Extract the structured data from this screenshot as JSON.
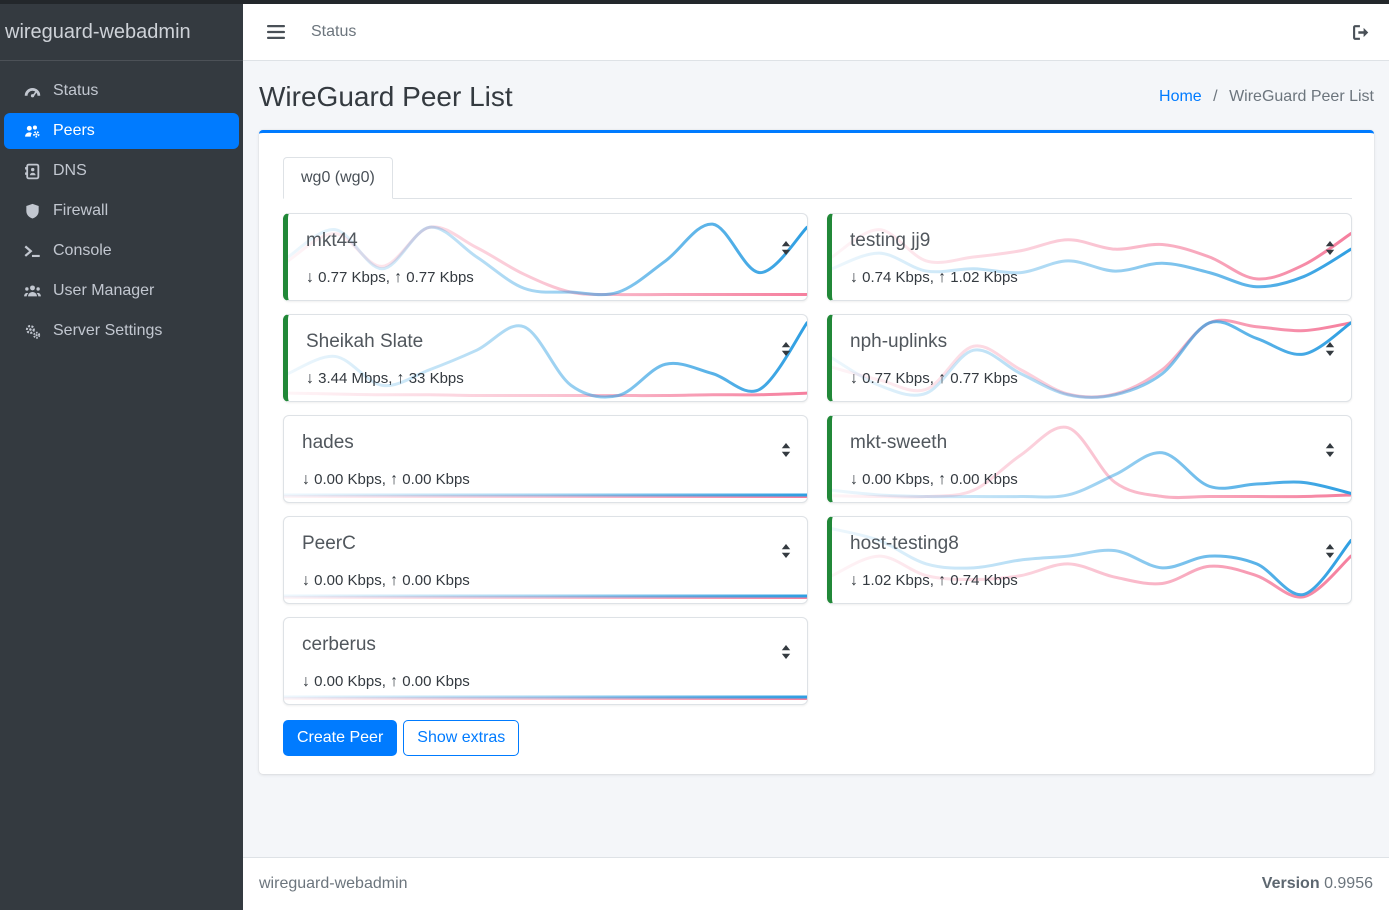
{
  "sidebar": {
    "brand": "wireguard-webadmin",
    "items": [
      {
        "label": "Status",
        "icon": "gauge-icon",
        "active": false
      },
      {
        "label": "Peers",
        "icon": "users-gear-icon",
        "active": true
      },
      {
        "label": "DNS",
        "icon": "address-book-icon",
        "active": false
      },
      {
        "label": "Firewall",
        "icon": "shield-icon",
        "active": false
      },
      {
        "label": "Console",
        "icon": "terminal-icon",
        "active": false
      },
      {
        "label": "User Manager",
        "icon": "users-icon",
        "active": false
      },
      {
        "label": "Server Settings",
        "icon": "gears-icon",
        "active": false
      }
    ]
  },
  "navbar": {
    "menu_item": "Status"
  },
  "page": {
    "title": "WireGuard Peer List",
    "breadcrumb": {
      "home": "Home",
      "separator": "/",
      "current": "WireGuard Peer List"
    }
  },
  "tabs": [
    {
      "label": "wg0 (wg0)",
      "active": true
    }
  ],
  "peers": {
    "down_arrow": "↓",
    "up_arrow": "↑",
    "stats_separator": ", ",
    "list": [
      {
        "name": "mkt44",
        "down": "0.77 Kbps",
        "up": "0.77 Kbps",
        "online": true,
        "column": "left",
        "spark": {
          "rx": [
            0.5,
            0.85,
            0.35,
            0.88,
            0.5,
            0.1,
            0.05,
            0.05,
            0.45,
            0.92,
            0.3,
            0.88
          ],
          "tx": [
            0.45,
            0.8,
            0.38,
            0.88,
            0.62,
            0.28,
            0.05,
            0.02,
            0.02,
            0.02,
            0.02,
            0.02
          ]
        }
      },
      {
        "name": "Sheikah Slate",
        "down": "3.44 Mbps",
        "up": "33 Kbps",
        "online": true,
        "column": "left",
        "spark": {
          "rx": [
            0.3,
            0.52,
            0.15,
            0.35,
            0.6,
            0.9,
            0.15,
            0.02,
            0.42,
            0.3,
            0.1,
            0.95
          ],
          "tx": [
            0.05,
            0.04,
            0.03,
            0.03,
            0.02,
            0.02,
            0.02,
            0.02,
            0.02,
            0.03,
            0.03,
            0.05
          ]
        }
      },
      {
        "name": "hades",
        "down": "0.00 Kbps",
        "up": "0.00 Kbps",
        "online": false,
        "column": "left",
        "spark": {
          "rx": [
            0.04,
            0.04,
            0.04,
            0.04,
            0.04,
            0.04,
            0.04,
            0.04,
            0.04,
            0.04,
            0.04,
            0.04
          ],
          "tx": [
            0.02,
            0.02,
            0.02,
            0.02,
            0.02,
            0.02,
            0.02,
            0.02,
            0.02,
            0.02,
            0.02,
            0.02
          ]
        }
      },
      {
        "name": "PeerC",
        "down": "0.00 Kbps",
        "up": "0.00 Kbps",
        "online": false,
        "column": "left",
        "spark": {
          "rx": [
            0.04,
            0.04,
            0.04,
            0.04,
            0.04,
            0.04,
            0.04,
            0.04,
            0.04,
            0.04,
            0.04,
            0.04
          ],
          "tx": [
            0.02,
            0.02,
            0.02,
            0.02,
            0.02,
            0.02,
            0.02,
            0.02,
            0.02,
            0.02,
            0.02,
            0.02
          ]
        }
      },
      {
        "name": "cerberus",
        "down": "0.00 Kbps",
        "up": "0.00 Kbps",
        "online": false,
        "column": "left",
        "spark": {
          "rx": [
            0.04,
            0.04,
            0.04,
            0.04,
            0.04,
            0.04,
            0.04,
            0.04,
            0.04,
            0.04,
            0.04,
            0.04
          ],
          "tx": [
            0.02,
            0.02,
            0.02,
            0.02,
            0.02,
            0.02,
            0.02,
            0.02,
            0.02,
            0.02,
            0.02,
            0.02
          ]
        }
      },
      {
        "name": "testing jj9",
        "down": "0.74 Kbps",
        "up": "1.02 Kbps",
        "online": true,
        "column": "right",
        "spark": {
          "rx": [
            0.35,
            0.55,
            0.32,
            0.35,
            0.3,
            0.45,
            0.32,
            0.42,
            0.3,
            0.12,
            0.25,
            0.6
          ],
          "tx": [
            0.5,
            0.85,
            0.45,
            0.5,
            0.58,
            0.72,
            0.6,
            0.66,
            0.5,
            0.22,
            0.4,
            0.8
          ]
        }
      },
      {
        "name": "nph-uplinks",
        "down": "0.77 Kbps",
        "up": "0.77 Kbps",
        "online": true,
        "column": "right",
        "spark": {
          "rx": [
            0.5,
            0.15,
            0.05,
            0.6,
            0.3,
            0.03,
            0.03,
            0.3,
            0.95,
            0.75,
            0.55,
            0.95
          ],
          "tx": [
            0.38,
            0.22,
            0.1,
            0.65,
            0.35,
            0.04,
            0.04,
            0.35,
            0.95,
            0.9,
            0.85,
            0.95
          ]
        }
      },
      {
        "name": "mkt-sweeth",
        "down": "0.00 Kbps",
        "up": "0.00 Kbps",
        "online": true,
        "column": "right",
        "spark": {
          "rx": [
            0.1,
            0.04,
            0.02,
            0.02,
            0.02,
            0.04,
            0.3,
            0.58,
            0.15,
            0.18,
            0.2,
            0.06
          ],
          "tx": [
            0.03,
            0.02,
            0.02,
            0.1,
            0.55,
            0.9,
            0.2,
            0.02,
            0.02,
            0.02,
            0.02,
            0.04
          ]
        }
      },
      {
        "name": "host-testing8",
        "down": "1.02 Kbps",
        "up": "0.74 Kbps",
        "online": true,
        "column": "right",
        "spark": {
          "rx": [
            0.9,
            0.75,
            0.45,
            0.4,
            0.5,
            0.55,
            0.62,
            0.4,
            0.55,
            0.45,
            0.06,
            0.75
          ],
          "tx": [
            0.3,
            0.55,
            0.3,
            0.25,
            0.3,
            0.45,
            0.28,
            0.2,
            0.42,
            0.3,
            0.03,
            0.55
          ]
        }
      }
    ]
  },
  "actions": {
    "create_peer": "Create Peer",
    "show_extras": "Show extras"
  },
  "footer": {
    "brand": "wireguard-webadmin",
    "version_label": "Version",
    "version_value": "0.9956"
  },
  "colors": {
    "accent": "#007bff",
    "online_green": "#218838",
    "spark_down_blue": "#2f9fe2",
    "spark_up_pink": "#f57f9e"
  }
}
